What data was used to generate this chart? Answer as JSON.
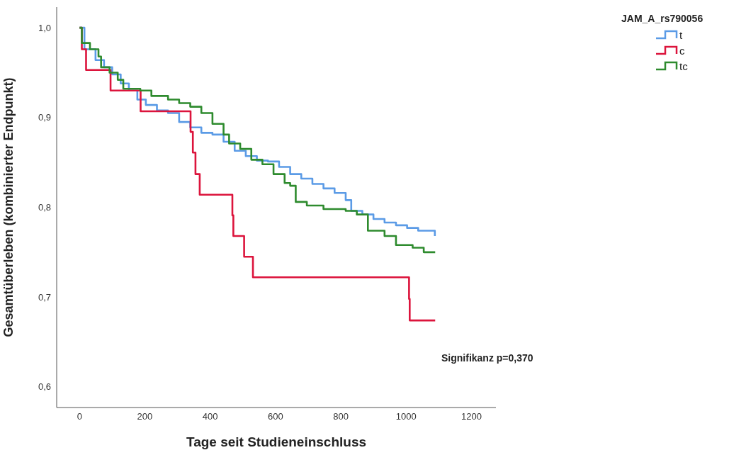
{
  "chart_data": {
    "type": "step",
    "xlabel": "Tage seit Studieneinschluss",
    "ylabel": "Gesamtüberleben (kombinierter Endpunkt)",
    "legend_title": "JAM_A_rs790056",
    "legend": "top right",
    "grid": false,
    "marker": "none",
    "line_style": "solid",
    "xlim": [
      -70,
      1275
    ],
    "xticks": [
      0,
      200,
      400,
      600,
      800,
      1000,
      1200
    ],
    "ylim": [
      0.577,
      1.023
    ],
    "yticks": [
      {
        "value": 0.6,
        "label": "0,6"
      },
      {
        "value": 0.7,
        "label": "0,7"
      },
      {
        "value": 0.8,
        "label": "0,8"
      },
      {
        "value": 0.9,
        "label": "0,9"
      },
      {
        "value": 1.0,
        "label": "1,0"
      }
    ],
    "annotations": [
      "Signifikanz p=0,370"
    ],
    "series": [
      {
        "name": "t",
        "color": "#5b9be6",
        "x": [
          0,
          15,
          49,
          75,
          100,
          126,
          151,
          177,
          203,
          237,
          271,
          305,
          339,
          373,
          407,
          441,
          475,
          509,
          543,
          577,
          611,
          645,
          679,
          713,
          747,
          781,
          815,
          832,
          866,
          900,
          934,
          969,
          1003,
          1037,
          1088
        ],
        "values": [
          1.0,
          0.976,
          0.964,
          0.956,
          0.948,
          0.938,
          0.93,
          0.92,
          0.914,
          0.908,
          0.905,
          0.895,
          0.889,
          0.883,
          0.881,
          0.873,
          0.863,
          0.857,
          0.852,
          0.851,
          0.845,
          0.837,
          0.832,
          0.826,
          0.821,
          0.816,
          0.808,
          0.796,
          0.792,
          0.787,
          0.783,
          0.78,
          0.777,
          0.774,
          0.768
        ]
      },
      {
        "name": "c",
        "color": "#dc143c",
        "x": [
          0,
          7,
          20,
          95,
          187,
          340,
          347,
          355,
          368,
          468,
          471,
          504,
          531,
          1009,
          1011,
          1089
        ],
        "values": [
          1.0,
          0.976,
          0.953,
          0.93,
          0.907,
          0.884,
          0.861,
          0.837,
          0.814,
          0.791,
          0.768,
          0.745,
          0.722,
          0.698,
          0.674,
          0.674
        ]
      },
      {
        "name": "tc",
        "color": "#2e8b2e",
        "x": [
          0,
          7,
          32,
          58,
          66,
          92,
          117,
          134,
          186,
          220,
          271,
          305,
          339,
          373,
          407,
          441,
          458,
          492,
          526,
          560,
          594,
          628,
          645,
          662,
          696,
          747,
          815,
          849,
          883,
          934,
          969,
          1020,
          1054,
          1089
        ],
        "values": [
          1.0,
          0.983,
          0.976,
          0.968,
          0.956,
          0.95,
          0.942,
          0.932,
          0.93,
          0.924,
          0.92,
          0.916,
          0.912,
          0.905,
          0.893,
          0.881,
          0.871,
          0.865,
          0.853,
          0.848,
          0.837,
          0.827,
          0.824,
          0.806,
          0.802,
          0.798,
          0.796,
          0.792,
          0.774,
          0.768,
          0.758,
          0.755,
          0.75,
          0.75
        ]
      }
    ]
  }
}
